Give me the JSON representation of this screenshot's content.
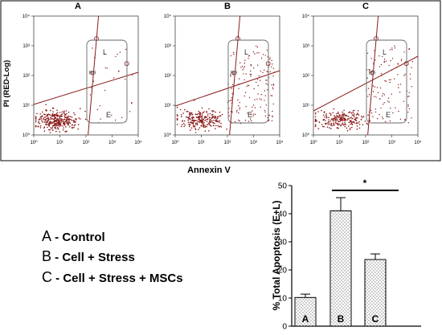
{
  "chart_data": [
    {
      "type": "scatter",
      "panels": [
        {
          "label": "A",
          "quadrant_label": "R9",
          "gate_labels": [
            "L",
            "E"
          ]
        },
        {
          "label": "B",
          "quadrant_label": "R9",
          "gate_labels": [
            "L",
            "E"
          ]
        },
        {
          "label": "C",
          "quadrant_label": "R9",
          "gate_labels": [
            "L",
            "E"
          ]
        }
      ],
      "xlabel": "Annexin V",
      "ylabel": "PI (RED-Log)",
      "x_ticks": [
        "10⁰",
        "10¹",
        "10²",
        "10³",
        "10⁴"
      ],
      "y_ticks": [
        "10⁰",
        "10¹",
        "10²",
        "10³",
        "10⁴"
      ],
      "x_scale": "log",
      "y_scale": "log",
      "point_color": "#8b1a1a"
    },
    {
      "type": "bar",
      "categories": [
        "A",
        "B",
        "C"
      ],
      "values": [
        10.2,
        41.0,
        23.7
      ],
      "errors": [
        1.2,
        4.7,
        2.0
      ],
      "ylabel": "% Total Apoptosis (E+L)",
      "ylim": [
        0,
        50
      ],
      "yticks": [
        "0",
        "10",
        "20",
        "30",
        "40",
        "50"
      ],
      "significance_label": "*",
      "bar_fill": "dotted"
    }
  ],
  "legend": [
    {
      "letter": "A",
      "text": " - Control"
    },
    {
      "letter": "B",
      "text": " - Cell + Stress"
    },
    {
      "letter": "C",
      "text": " - Cell + Stress + MSCs"
    }
  ]
}
